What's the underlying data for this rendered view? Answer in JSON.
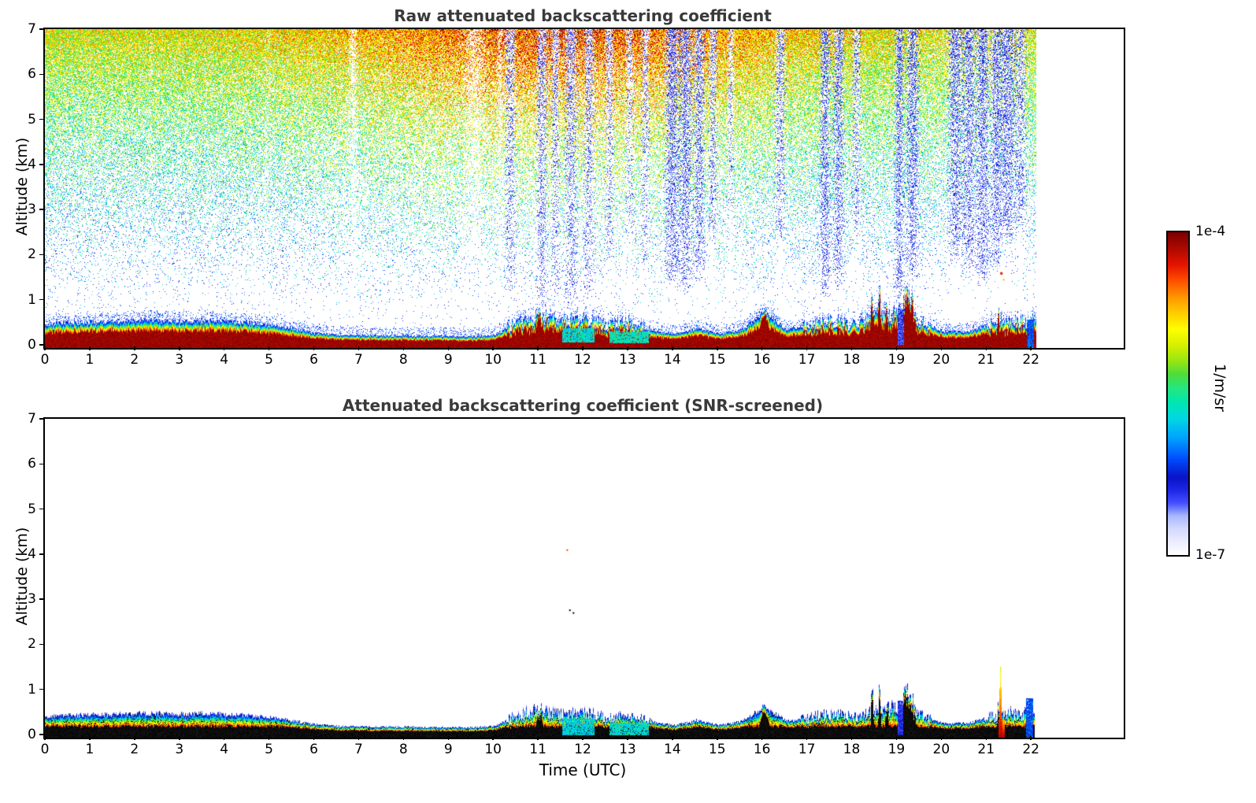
{
  "figure": {
    "background": "#ffffff"
  },
  "colorbar": {
    "max_label": "1e-4",
    "min_label": "1e-7",
    "unit": "1/m/sr",
    "stops": [
      [
        0,
        "#ffffff"
      ],
      [
        0.04,
        "#eceeff"
      ],
      [
        0.08,
        "#d4daff"
      ],
      [
        0.12,
        "#aab8ff"
      ],
      [
        0.16,
        "#4650ff"
      ],
      [
        0.2,
        "#1e28e6"
      ],
      [
        0.24,
        "#0a14c8"
      ],
      [
        0.3,
        "#0050ff"
      ],
      [
        0.36,
        "#00a0ff"
      ],
      [
        0.42,
        "#00d7e6"
      ],
      [
        0.47,
        "#00e6b4"
      ],
      [
        0.52,
        "#28e67d"
      ],
      [
        0.56,
        "#50dc3c"
      ],
      [
        0.6,
        "#96e614"
      ],
      [
        0.65,
        "#d7f000"
      ],
      [
        0.7,
        "#ffff00"
      ],
      [
        0.75,
        "#ffcd00"
      ],
      [
        0.8,
        "#ff9600"
      ],
      [
        0.85,
        "#ff5000"
      ],
      [
        0.9,
        "#e61400"
      ],
      [
        0.95,
        "#af0a00"
      ],
      [
        1,
        "#7d0000"
      ]
    ]
  },
  "chart_data": [
    {
      "type": "heatmap",
      "title": "Raw attenuated backscattering coefficient",
      "xlabel": "",
      "ylabel": "Altitude (km)",
      "xlim": [
        0,
        24
      ],
      "ylim": [
        0,
        7
      ],
      "xticks": [
        0,
        1,
        2,
        3,
        4,
        5,
        6,
        7,
        8,
        9,
        10,
        11,
        12,
        13,
        14,
        15,
        16,
        17,
        18,
        19,
        20,
        21,
        22
      ],
      "yticks": [
        0,
        1,
        2,
        3,
        4,
        5,
        6,
        7
      ],
      "data_time_range_utc": [
        0,
        22
      ],
      "colorbar_range": [
        "1e-7",
        "1e-4"
      ],
      "colorbar_units": "1/m/sr",
      "surface_layer": {
        "dt": 0.5,
        "top_km": [
          0.52,
          0.55,
          0.56,
          0.58,
          0.6,
          0.6,
          0.58,
          0.6,
          0.58,
          0.55,
          0.5,
          0.42,
          0.32,
          0.28,
          0.27,
          0.26,
          0.26,
          0.25,
          0.25,
          0.24,
          0.28,
          0.55,
          0.7,
          0.6,
          0.62,
          0.5,
          0.55,
          0.38,
          0.3,
          0.42,
          0.3,
          0.4,
          0.78,
          0.4,
          0.5,
          0.6,
          0.5,
          0.7,
          0.75,
          0.55,
          0.35,
          0.35,
          0.5,
          0.6,
          0.6
        ],
        "core_fraction": 0.62
      },
      "spikes": [
        {
          "t": 11.0,
          "h": 0.75,
          "w": 0.1
        },
        {
          "t": 16.0,
          "h": 0.82,
          "w": 0.14
        },
        {
          "t": 18.4,
          "h": 1.05,
          "w": 0.05
        },
        {
          "t": 18.56,
          "h": 1.15,
          "w": 0.04
        },
        {
          "t": 18.72,
          "h": 1.0,
          "w": 0.04
        },
        {
          "t": 19.2,
          "h": 1.28,
          "w": 0.17
        },
        {
          "t": 21.2,
          "h": 0.8,
          "w": 0.04
        }
      ],
      "virga_columns": [
        {
          "t": 10.35,
          "b": 0.9,
          "w": 0.1,
          "s": 0.3
        },
        {
          "t": 11.05,
          "b": 0.7,
          "w": 0.1,
          "s": 0.35
        },
        {
          "t": 11.35,
          "b": 1.0,
          "w": 0.08,
          "s": 0.3
        },
        {
          "t": 11.7,
          "b": 0.8,
          "w": 0.12,
          "s": 0.35
        },
        {
          "t": 12.1,
          "b": 0.9,
          "w": 0.1,
          "s": 0.3
        },
        {
          "t": 12.55,
          "b": 1.8,
          "w": 0.08,
          "s": 0.25
        },
        {
          "t": 13.0,
          "b": 2.2,
          "w": 0.08,
          "s": 0.2
        },
        {
          "t": 13.35,
          "b": 1.5,
          "w": 0.08,
          "s": 0.25
        },
        {
          "t": 13.95,
          "b": 1.2,
          "w": 0.14,
          "s": 0.5
        },
        {
          "t": 14.25,
          "b": 1.1,
          "w": 0.12,
          "s": 0.5
        },
        {
          "t": 14.55,
          "b": 1.4,
          "w": 0.1,
          "s": 0.45
        },
        {
          "t": 14.85,
          "b": 2.2,
          "w": 0.08,
          "s": 0.3
        },
        {
          "t": 15.25,
          "b": 2.8,
          "w": 0.06,
          "s": 0.2
        },
        {
          "t": 16.35,
          "b": 2.2,
          "w": 0.1,
          "s": 0.3
        },
        {
          "t": 17.35,
          "b": 1.0,
          "w": 0.1,
          "s": 0.5
        },
        {
          "t": 17.65,
          "b": 1.2,
          "w": 0.1,
          "s": 0.45
        },
        {
          "t": 18.05,
          "b": 2.4,
          "w": 0.08,
          "s": 0.3
        },
        {
          "t": 19.0,
          "b": 0.9,
          "w": 0.08,
          "s": 0.55
        },
        {
          "t": 19.3,
          "b": 1.4,
          "w": 0.12,
          "s": 0.5
        },
        {
          "t": 20.25,
          "b": 1.8,
          "w": 0.14,
          "s": 0.45
        },
        {
          "t": 20.55,
          "b": 1.5,
          "w": 0.12,
          "s": 0.45
        },
        {
          "t": 20.85,
          "b": 1.3,
          "w": 0.12,
          "s": 0.5
        },
        {
          "t": 21.15,
          "b": 1.6,
          "w": 0.1,
          "s": 0.45
        },
        {
          "t": 21.4,
          "b": 2.2,
          "w": 0.16,
          "s": 0.5
        },
        {
          "t": 21.7,
          "b": 2.6,
          "w": 0.1,
          "s": 0.35
        }
      ],
      "white_gaps": [
        {
          "t": 6.85,
          "w": 0.09,
          "s": 0.6
        },
        {
          "t": 9.55,
          "w": 0.2,
          "s": 0.55
        },
        {
          "t": 10.12,
          "w": 0.06,
          "s": 0.4
        },
        {
          "t": 4.95,
          "w": 0.05,
          "s": 0.3
        },
        {
          "t": 2.35,
          "w": 0.04,
          "s": 0.25
        },
        {
          "t": 20.9,
          "w": 1.2,
          "s": 0.3
        }
      ],
      "cyan_patches": [
        {
          "t0": 11.5,
          "t1": 12.22,
          "a0": 0.12,
          "a1": 0.42,
          "v": 0.44
        },
        {
          "t0": 12.56,
          "t1": 13.42,
          "a0": 0.1,
          "a1": 0.36,
          "v": 0.46
        }
      ],
      "cold_patches": [
        {
          "t0": 18.96,
          "t1": 19.1,
          "a0": 0.05,
          "a1": 0.85,
          "v": 0.18
        },
        {
          "t0": 21.84,
          "t1": 22.0,
          "a0": 0,
          "a1": 0.62,
          "v": 0.3
        }
      ],
      "isolated_points": [
        {
          "t": 21.28,
          "alt": 1.62,
          "v": 0.9,
          "size": 3
        },
        {
          "t": 21.33,
          "alt": 1.48,
          "v": 0.78,
          "size": 2
        }
      ],
      "noise": {
        "density_base": 0.008,
        "density_pow": 2.15,
        "density_scale": 0.95,
        "value_base": 0.22,
        "value_alt_gain": 0.46,
        "value_boost_gain": 0.2,
        "boost_center_utc": 11.5,
        "boost_width_h": 4.8,
        "jitter": 0.34
      },
      "seed": 1337
    },
    {
      "type": "heatmap",
      "title": "Attenuated backscattering coefficient (SNR-screened)",
      "xlabel": "Time (UTC)",
      "ylabel": "Altitude (km)",
      "xlim": [
        0,
        24
      ],
      "ylim": [
        0,
        7
      ],
      "xticks": [
        0,
        1,
        2,
        3,
        4,
        5,
        6,
        7,
        8,
        9,
        10,
        11,
        12,
        13,
        14,
        15,
        16,
        17,
        18,
        19,
        20,
        21,
        22
      ],
      "yticks": [
        0,
        1,
        2,
        3,
        4,
        5,
        6,
        7
      ],
      "data_time_range_utc": [
        0,
        22
      ],
      "layer_top_scale": 0.88,
      "core_black_km": 0.24,
      "fringe_black_fraction": 0.14,
      "extra_spikes": [
        {
          "t": 21.25,
          "h": 1.55,
          "w": 0.03
        },
        {
          "t": 21.32,
          "h": 0.62,
          "w": 0.025
        }
      ],
      "cyan_patches": [
        {
          "t0": 11.5,
          "t1": 12.22,
          "a0": 0.05,
          "a1": 0.4,
          "v": 0.42
        },
        {
          "t0": 12.56,
          "t1": 13.42,
          "a0": 0.05,
          "a1": 0.32,
          "v": 0.44
        }
      ],
      "cold_patches": [
        {
          "t0": 18.96,
          "t1": 19.08,
          "a0": 0.05,
          "a1": 0.8,
          "v": 0.2
        },
        {
          "t0": 21.82,
          "t1": 21.98,
          "a0": 0,
          "a1": 0.85,
          "v": 0.3
        }
      ],
      "isolated_points": [
        {
          "t": 11.62,
          "alt": 4.1,
          "v": 0.86,
          "size": 2
        },
        {
          "t": 11.68,
          "alt": 2.78,
          "black": true,
          "size": 2
        },
        {
          "t": 11.76,
          "alt": 2.72,
          "black": true,
          "size": 2
        }
      ],
      "seed": 4242
    }
  ]
}
